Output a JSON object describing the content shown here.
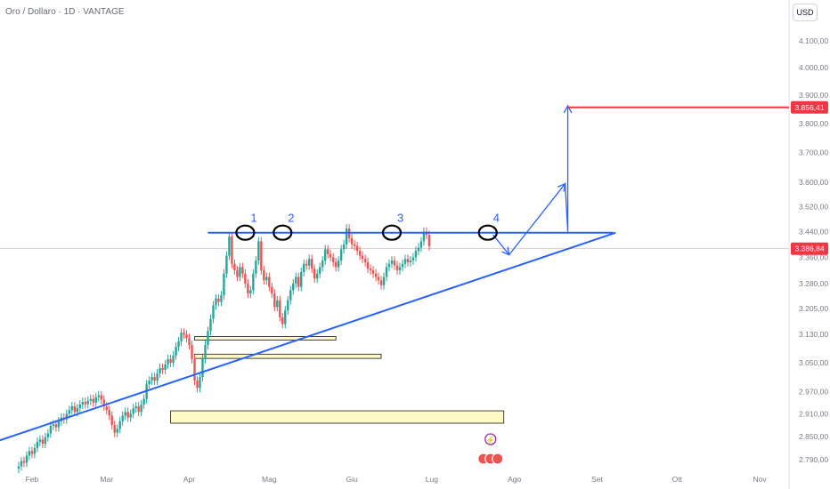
{
  "header": {
    "title": "Oro / Dollaro · 1D · VANTAGE",
    "currency": "USD"
  },
  "colors": {
    "up": "#26a69a",
    "down": "#ef5350",
    "trendline": "#2962ff",
    "target": "#f23645",
    "zone_fill": "#fff9c4",
    "axis_text": "#787b86"
  },
  "chart_data": {
    "type": "candlestick",
    "y_scale": "log",
    "ylim": [
      2765,
      4160
    ],
    "xlim": [
      "2025-01-20",
      "2025-11-12"
    ],
    "y_ticks": [
      "4.100,00",
      "4.000,00",
      "3.900,00",
      "3.800,00",
      "3.700,00",
      "3.600,00",
      "3.520,00",
      "3.440,00",
      "3.360,00",
      "3.280,00",
      "3.205,00",
      "3.130,00",
      "3.050,00",
      "2.970,00",
      "2.910,00",
      "2.850,00",
      "2.790,00"
    ],
    "y_tick_values": [
      4100,
      4000,
      3900,
      3800,
      3700,
      3600,
      3520,
      3440,
      3360,
      3280,
      3205,
      3130,
      3050,
      2970,
      2910,
      2850,
      2790
    ],
    "x_ticks": [
      {
        "label": "Feb",
        "date": "2025-02-01"
      },
      {
        "label": "Mar",
        "date": "2025-03-01"
      },
      {
        "label": "Apr",
        "date": "2025-04-01"
      },
      {
        "label": "Mag",
        "date": "2025-05-01"
      },
      {
        "label": "Giu",
        "date": "2025-06-01"
      },
      {
        "label": "Lug",
        "date": "2025-07-01"
      },
      {
        "label": "Ago",
        "date": "2025-08-01"
      },
      {
        "label": "Set",
        "date": "2025-09-01"
      },
      {
        "label": "Ott",
        "date": "2025-10-01"
      },
      {
        "label": "Nov",
        "date": "2025-11-01"
      }
    ],
    "price_labels": [
      {
        "text": "3.856,41",
        "value": 3856.41,
        "color": "#f23645"
      },
      {
        "text": "3.386,84",
        "value": 3386.84,
        "color": "#f23645"
      }
    ],
    "closes": [
      2773,
      2786,
      2782,
      2800,
      2812,
      2805,
      2820,
      2836,
      2842,
      2831,
      2848,
      2858,
      2878,
      2882,
      2874,
      2890,
      2900,
      2895,
      2910,
      2920,
      2930,
      2915,
      2925,
      2935,
      2942,
      2936,
      2945,
      2950,
      2940,
      2955,
      2960,
      2948,
      2930,
      2920,
      2905,
      2880,
      2860,
      2870,
      2890,
      2905,
      2915,
      2900,
      2910,
      2925,
      2930,
      2915,
      2935,
      2950,
      2990,
      3000,
      3010,
      3000,
      3020,
      3035,
      3030,
      3045,
      3060,
      3050,
      3070,
      3095,
      3110,
      3135,
      3130,
      3120,
      3100,
      3060,
      3000,
      2980,
      3010,
      3060,
      3100,
      3140,
      3175,
      3215,
      3235,
      3225,
      3245,
      3310,
      3365,
      3425,
      3340,
      3320,
      3300,
      3330,
      3310,
      3280,
      3250,
      3260,
      3310,
      3350,
      3410,
      3320,
      3290,
      3300,
      3270,
      3250,
      3210,
      3230,
      3180,
      3160,
      3200,
      3230,
      3260,
      3280,
      3300,
      3270,
      3315,
      3340,
      3335,
      3355,
      3325,
      3295,
      3310,
      3330,
      3350,
      3385,
      3370,
      3360,
      3345,
      3330,
      3350,
      3385,
      3400,
      3450,
      3420,
      3400,
      3395,
      3380,
      3365,
      3355,
      3345,
      3325,
      3320,
      3310,
      3300,
      3290,
      3275,
      3300,
      3330,
      3340,
      3350,
      3335,
      3320,
      3330,
      3340,
      3355,
      3345,
      3350,
      3360,
      3380,
      3390,
      3410,
      3440,
      3430,
      3395
    ],
    "chart_start": "2025-01-27",
    "trendlines": [
      {
        "kind": "resistance",
        "from": {
          "date": "2025-04-08",
          "price": 3437
        },
        "to": {
          "date": "2025-09-07",
          "price": 3437
        }
      },
      {
        "kind": "rising-support",
        "from": {
          "date": "2025-01-08",
          "price": 2812
        },
        "to": {
          "date": "2025-09-08",
          "price": 3437
        }
      }
    ],
    "projection_path": [
      {
        "date": "2025-07-24",
        "price": 3430
      },
      {
        "date": "2025-07-30",
        "price": 3368
      },
      {
        "date": "2025-08-20",
        "price": 3595
      },
      {
        "date": "2025-08-21",
        "price": 3440
      },
      {
        "date": "2025-08-21",
        "price": 3862
      }
    ],
    "target_line": {
      "from": "2025-08-21",
      "to": "2025-11-12",
      "price": 3856.41
    },
    "current_line_price": 3386.84,
    "zones": [
      {
        "from": "2025-04-03",
        "to": "2025-05-26",
        "top": 3124,
        "bottom": 3114
      },
      {
        "from": "2025-04-03",
        "to": "2025-06-12",
        "top": 3074,
        "bottom": 3062
      },
      {
        "from": "2025-03-25",
        "to": "2025-07-28",
        "top": 2918,
        "bottom": 2885
      }
    ],
    "peaks": [
      {
        "label": "1",
        "date": "2025-04-22",
        "price": 3437
      },
      {
        "label": "2",
        "date": "2025-05-06",
        "price": 3437
      },
      {
        "label": "3",
        "date": "2025-06-16",
        "price": 3437
      },
      {
        "label": "4",
        "date": "2025-07-22",
        "price": 3437
      }
    ],
    "event_icons_date": "2025-07-23"
  }
}
